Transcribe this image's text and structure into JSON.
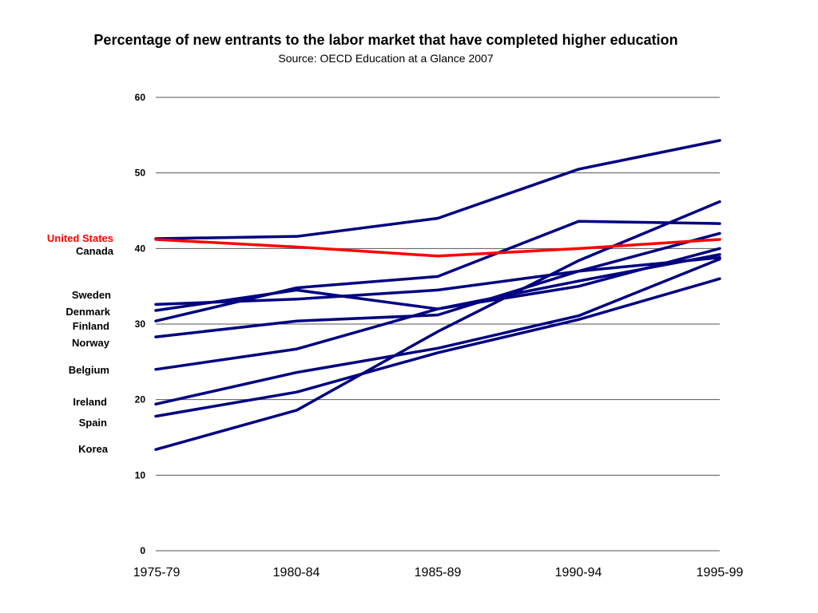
{
  "chart_data": {
    "type": "line",
    "title": "Percentage of new entrants to the labor market that have completed higher education",
    "subtitle": "Source: OECD Education at a Glance 2007",
    "xlabel": "",
    "ylabel": "",
    "categories": [
      "1975-79",
      "1980-84",
      "1985-89",
      "1990-94",
      "1995-99"
    ],
    "ylim": [
      0,
      60
    ],
    "yticks": [
      0,
      10,
      20,
      30,
      40,
      50,
      60
    ],
    "grid": true,
    "legend": "left labels",
    "colors": {
      "highlight": "#ff0000",
      "default": "#000080"
    },
    "series": [
      {
        "name": "United States",
        "values": [
          41.2,
          40.2,
          39.0,
          40.0,
          41.2
        ],
        "highlight": true
      },
      {
        "name": "Canada",
        "values": [
          41.3,
          41.6,
          44.0,
          50.5,
          54.3
        ]
      },
      {
        "name": "Sweden",
        "values": [
          32.6,
          33.3,
          34.5,
          37.0,
          38.8
        ]
      },
      {
        "name": "Denmark",
        "values": [
          31.8,
          34.5,
          32.0,
          35.0,
          40.0
        ]
      },
      {
        "name": "Finland",
        "values": [
          30.4,
          34.8,
          36.3,
          43.6,
          43.3
        ]
      },
      {
        "name": "Norway",
        "values": [
          28.3,
          30.4,
          31.2,
          37.0,
          42.0
        ]
      },
      {
        "name": "Belgium",
        "values": [
          24.0,
          26.7,
          32.0,
          35.7,
          39.2
        ]
      },
      {
        "name": "Ireland",
        "values": [
          19.4,
          23.6,
          26.8,
          31.1,
          38.6
        ]
      },
      {
        "name": "Spain",
        "values": [
          17.8,
          21.0,
          26.2,
          30.6,
          36.0
        ]
      },
      {
        "name": "Korea",
        "values": [
          13.4,
          18.6,
          29.0,
          38.4,
          46.2
        ]
      }
    ]
  }
}
